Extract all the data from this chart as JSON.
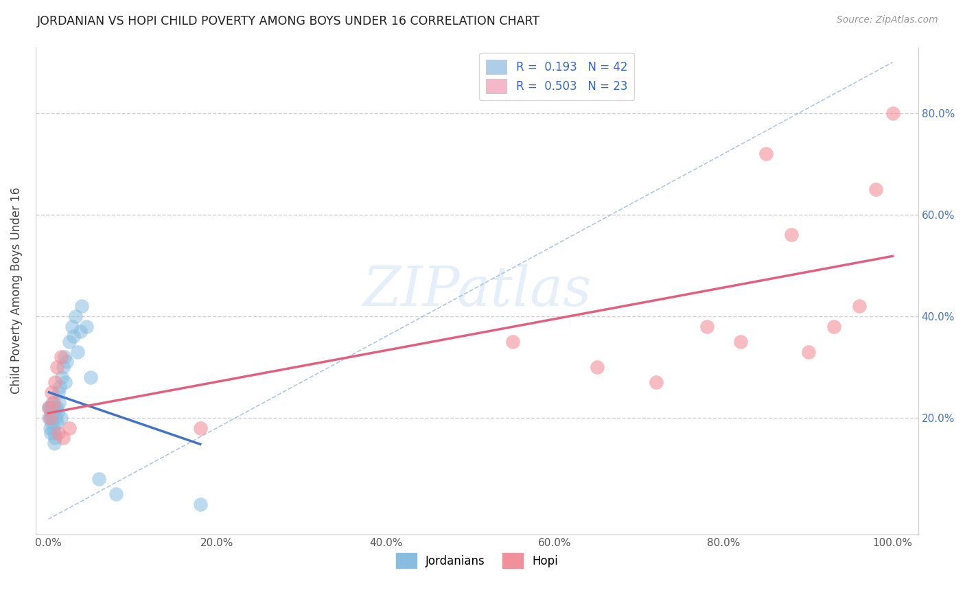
{
  "title": "JORDANIAN VS HOPI CHILD POVERTY AMONG BOYS UNDER 16 CORRELATION CHART",
  "source": "Source: ZipAtlas.com",
  "ylabel": "Child Poverty Among Boys Under 16",
  "watermark": "ZIPatlas",
  "legend_entries": [
    {
      "label": "R =  0.193   N = 42",
      "facecolor": "#aecde8"
    },
    {
      "label": "R =  0.503   N = 23",
      "facecolor": "#f5b8cb"
    }
  ],
  "jordanian_scatter_color": "#88bde0",
  "hopi_scatter_color": "#f0909a",
  "jordanian_line_color": "#4472c4",
  "hopi_line_color": "#e06080",
  "diagonal_color": "#8ab0d8",
  "title_color": "#222222",
  "source_color": "#999999",
  "background_color": "#ffffff",
  "grid_color": "#d0d0d0",
  "right_tick_color": "#4472c4",
  "jordanian_x": [
    0.001,
    0.001,
    0.002,
    0.002,
    0.003,
    0.003,
    0.003,
    0.004,
    0.004,
    0.005,
    0.005,
    0.006,
    0.006,
    0.007,
    0.007,
    0.008,
    0.008,
    0.009,
    0.01,
    0.01,
    0.011,
    0.012,
    0.013,
    0.014,
    0.015,
    0.016,
    0.018,
    0.019,
    0.02,
    0.022,
    0.025,
    0.028,
    0.03,
    0.032,
    0.035,
    0.038,
    0.04,
    0.045,
    0.05,
    0.06,
    0.08,
    0.18
  ],
  "jordanian_y": [
    0.2,
    0.22,
    0.18,
    0.22,
    0.17,
    0.2,
    0.21,
    0.19,
    0.22,
    0.2,
    0.23,
    0.18,
    0.21,
    0.15,
    0.17,
    0.22,
    0.16,
    0.2,
    0.22,
    0.19,
    0.21,
    0.25,
    0.23,
    0.26,
    0.2,
    0.28,
    0.3,
    0.32,
    0.27,
    0.31,
    0.35,
    0.38,
    0.36,
    0.4,
    0.33,
    0.37,
    0.42,
    0.38,
    0.28,
    0.08,
    0.05,
    0.03
  ],
  "hopi_x": [
    0.001,
    0.002,
    0.004,
    0.006,
    0.008,
    0.01,
    0.012,
    0.015,
    0.018,
    0.025,
    0.18,
    0.55,
    0.65,
    0.72,
    0.78,
    0.82,
    0.85,
    0.88,
    0.9,
    0.93,
    0.96,
    0.98,
    1.0
  ],
  "hopi_y": [
    0.22,
    0.2,
    0.25,
    0.23,
    0.27,
    0.3,
    0.17,
    0.32,
    0.16,
    0.18,
    0.18,
    0.35,
    0.3,
    0.27,
    0.38,
    0.35,
    0.72,
    0.56,
    0.33,
    0.38,
    0.42,
    0.65,
    0.8
  ],
  "xlim": [
    -0.015,
    1.03
  ],
  "ylim": [
    -0.03,
    0.93
  ],
  "xticks": [
    0.0,
    0.2,
    0.4,
    0.6,
    0.8,
    1.0
  ],
  "xticklabels": [
    "0.0%",
    "20.0%",
    "40.0%",
    "60.0%",
    "80.0%",
    "100.0%"
  ],
  "ytick_left_vals": [
    0.0,
    0.2,
    0.4,
    0.6,
    0.8
  ],
  "ytick_right_vals": [
    0.2,
    0.4,
    0.6,
    0.8
  ],
  "ytick_right_labels": [
    "20.0%",
    "40.0%",
    "60.0%",
    "80.0%"
  ],
  "hgrid_vals": [
    0.2,
    0.4,
    0.6,
    0.8
  ],
  "bottom_labels": [
    "Jordanians",
    "Hopi"
  ]
}
